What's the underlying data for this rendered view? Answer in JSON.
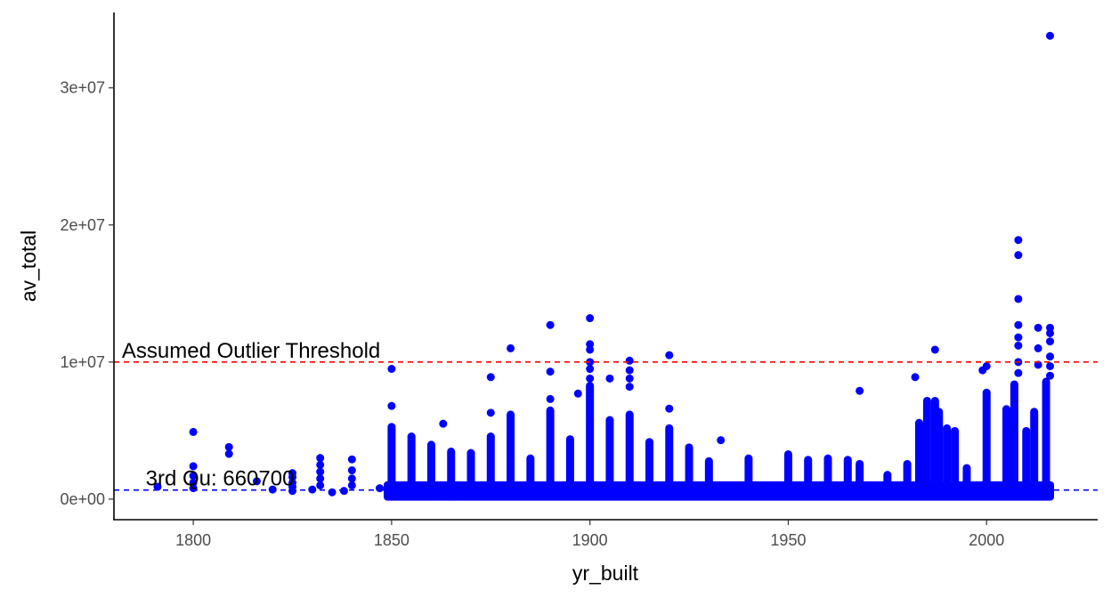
{
  "chart_data": {
    "type": "scatter",
    "xlabel": "yr_built",
    "ylabel": "av_total",
    "xlim": [
      1780,
      2028
    ],
    "ylim": [
      -1500000,
      35500000
    ],
    "x_ticks": [
      1800,
      1850,
      1900,
      1950,
      2000
    ],
    "x_tick_labels": [
      "1800",
      "1850",
      "1900",
      "1950",
      "2000"
    ],
    "y_ticks": [
      0,
      10000000,
      20000000,
      30000000
    ],
    "y_tick_labels": [
      "0e+00",
      "1e+07",
      "2e+07",
      "3e+07"
    ],
    "grid": false,
    "point_color": "#0000FF",
    "reference_lines": [
      {
        "label": "Assumed Outlier Threshold",
        "value": 10000000,
        "color": "#FF0000",
        "style": "dashed",
        "label_x": 1782
      },
      {
        "label": "3rd Qu: 660700",
        "value": 660700,
        "color": "#0000FF",
        "style": "dashed",
        "label_x": 1788
      }
    ],
    "columns": [
      {
        "x": 1850,
        "ymin": 150000,
        "ymax": 5300000
      },
      {
        "x": 1855,
        "ymin": 150000,
        "ymax": 4600000
      },
      {
        "x": 1860,
        "ymin": 150000,
        "ymax": 4000000
      },
      {
        "x": 1865,
        "ymin": 150000,
        "ymax": 3500000
      },
      {
        "x": 1870,
        "ymin": 150000,
        "ymax": 3400000
      },
      {
        "x": 1875,
        "ymin": 150000,
        "ymax": 4600000
      },
      {
        "x": 1880,
        "ymin": 150000,
        "ymax": 6200000
      },
      {
        "x": 1885,
        "ymin": 150000,
        "ymax": 3000000
      },
      {
        "x": 1890,
        "ymin": 150000,
        "ymax": 6500000
      },
      {
        "x": 1895,
        "ymin": 150000,
        "ymax": 4400000
      },
      {
        "x": 1900,
        "ymin": 150000,
        "ymax": 8300000
      },
      {
        "x": 1905,
        "ymin": 150000,
        "ymax": 5800000
      },
      {
        "x": 1910,
        "ymin": 150000,
        "ymax": 6200000
      },
      {
        "x": 1915,
        "ymin": 150000,
        "ymax": 4200000
      },
      {
        "x": 1920,
        "ymin": 150000,
        "ymax": 5200000
      },
      {
        "x": 1925,
        "ymin": 150000,
        "ymax": 3800000
      },
      {
        "x": 1930,
        "ymin": 150000,
        "ymax": 2800000
      },
      {
        "x": 1940,
        "ymin": 150000,
        "ymax": 3000000
      },
      {
        "x": 1950,
        "ymin": 150000,
        "ymax": 3300000
      },
      {
        "x": 1955,
        "ymin": 150000,
        "ymax": 2900000
      },
      {
        "x": 1960,
        "ymin": 150000,
        "ymax": 3000000
      },
      {
        "x": 1965,
        "ymin": 150000,
        "ymax": 2900000
      },
      {
        "x": 1968,
        "ymin": 150000,
        "ymax": 2600000
      },
      {
        "x": 1975,
        "ymin": 150000,
        "ymax": 1800000
      },
      {
        "x": 1980,
        "ymin": 150000,
        "ymax": 2600000
      },
      {
        "x": 1983,
        "ymin": 200000,
        "ymax": 5600000
      },
      {
        "x": 1985,
        "ymin": 200000,
        "ymax": 7200000
      },
      {
        "x": 1987,
        "ymin": 200000,
        "ymax": 7200000
      },
      {
        "x": 1988,
        "ymin": 200000,
        "ymax": 6400000
      },
      {
        "x": 1990,
        "ymin": 200000,
        "ymax": 5200000
      },
      {
        "x": 1992,
        "ymin": 200000,
        "ymax": 5000000
      },
      {
        "x": 1995,
        "ymin": 200000,
        "ymax": 2300000
      },
      {
        "x": 2000,
        "ymin": 200000,
        "ymax": 7800000
      },
      {
        "x": 2005,
        "ymin": 200000,
        "ymax": 6600000
      },
      {
        "x": 2007,
        "ymin": 200000,
        "ymax": 8400000
      },
      {
        "x": 2010,
        "ymin": 200000,
        "ymax": 5000000
      },
      {
        "x": 2012,
        "ymin": 200000,
        "ymax": 6400000
      },
      {
        "x": 2015,
        "ymin": 200000,
        "ymax": 8600000
      }
    ],
    "points": [
      {
        "x": 1791,
        "y": 900000
      },
      {
        "x": 1800,
        "y": 4900000
      },
      {
        "x": 1800,
        "y": 2400000
      },
      {
        "x": 1800,
        "y": 1700000
      },
      {
        "x": 1800,
        "y": 1200000
      },
      {
        "x": 1800,
        "y": 800000
      },
      {
        "x": 1809,
        "y": 3800000
      },
      {
        "x": 1809,
        "y": 3300000
      },
      {
        "x": 1816,
        "y": 1300000
      },
      {
        "x": 1820,
        "y": 700000
      },
      {
        "x": 1825,
        "y": 1900000
      },
      {
        "x": 1825,
        "y": 1600000
      },
      {
        "x": 1825,
        "y": 1200000
      },
      {
        "x": 1825,
        "y": 900000
      },
      {
        "x": 1825,
        "y": 600000
      },
      {
        "x": 1830,
        "y": 700000
      },
      {
        "x": 1832,
        "y": 3000000
      },
      {
        "x": 1832,
        "y": 2500000
      },
      {
        "x": 1832,
        "y": 2000000
      },
      {
        "x": 1832,
        "y": 1500000
      },
      {
        "x": 1832,
        "y": 1000000
      },
      {
        "x": 1835,
        "y": 500000
      },
      {
        "x": 1838,
        "y": 600000
      },
      {
        "x": 1840,
        "y": 2900000
      },
      {
        "x": 1840,
        "y": 2100000
      },
      {
        "x": 1840,
        "y": 1500000
      },
      {
        "x": 1840,
        "y": 1000000
      },
      {
        "x": 1847,
        "y": 800000
      },
      {
        "x": 1850,
        "y": 9500000
      },
      {
        "x": 1850,
        "y": 6800000
      },
      {
        "x": 1863,
        "y": 5500000
      },
      {
        "x": 1875,
        "y": 8900000
      },
      {
        "x": 1875,
        "y": 6300000
      },
      {
        "x": 1880,
        "y": 11000000
      },
      {
        "x": 1890,
        "y": 12700000
      },
      {
        "x": 1890,
        "y": 9300000
      },
      {
        "x": 1890,
        "y": 7300000
      },
      {
        "x": 1897,
        "y": 7700000
      },
      {
        "x": 1900,
        "y": 13200000
      },
      {
        "x": 1900,
        "y": 11300000
      },
      {
        "x": 1900,
        "y": 10900000
      },
      {
        "x": 1900,
        "y": 10000000
      },
      {
        "x": 1900,
        "y": 9500000
      },
      {
        "x": 1900,
        "y": 8800000
      },
      {
        "x": 1905,
        "y": 8800000
      },
      {
        "x": 1910,
        "y": 10100000
      },
      {
        "x": 1910,
        "y": 9400000
      },
      {
        "x": 1910,
        "y": 8800000
      },
      {
        "x": 1910,
        "y": 8200000
      },
      {
        "x": 1920,
        "y": 10500000
      },
      {
        "x": 1920,
        "y": 6600000
      },
      {
        "x": 1933,
        "y": 4300000
      },
      {
        "x": 1968,
        "y": 7900000
      },
      {
        "x": 1982,
        "y": 8900000
      },
      {
        "x": 1987,
        "y": 10900000
      },
      {
        "x": 1999,
        "y": 9400000
      },
      {
        "x": 2000,
        "y": 9700000
      },
      {
        "x": 2008,
        "y": 18900000
      },
      {
        "x": 2008,
        "y": 17800000
      },
      {
        "x": 2008,
        "y": 14600000
      },
      {
        "x": 2008,
        "y": 12700000
      },
      {
        "x": 2008,
        "y": 11800000
      },
      {
        "x": 2008,
        "y": 11200000
      },
      {
        "x": 2008,
        "y": 10000000
      },
      {
        "x": 2008,
        "y": 9200000
      },
      {
        "x": 2013,
        "y": 12500000
      },
      {
        "x": 2013,
        "y": 11000000
      },
      {
        "x": 2013,
        "y": 9800000
      },
      {
        "x": 2016,
        "y": 33800000
      },
      {
        "x": 2016,
        "y": 12500000
      },
      {
        "x": 2016,
        "y": 12100000
      },
      {
        "x": 2016,
        "y": 11500000
      },
      {
        "x": 2016,
        "y": 10400000
      },
      {
        "x": 2016,
        "y": 9700000
      },
      {
        "x": 2016,
        "y": 9000000
      }
    ]
  }
}
